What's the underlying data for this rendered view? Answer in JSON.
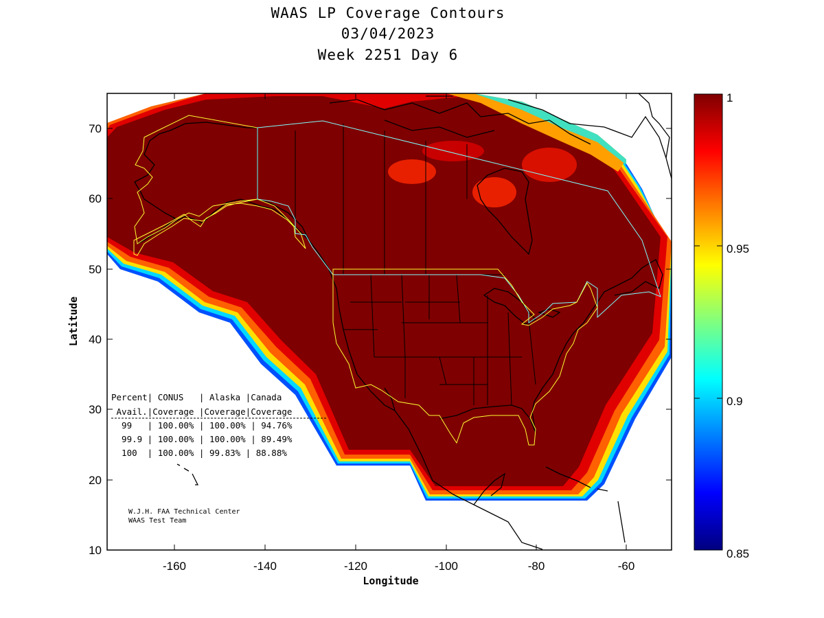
{
  "title": {
    "line1": "WAAS LP Coverage Contours",
    "line2": "03/04/2023",
    "line3": "Week 2251 Day 6"
  },
  "axes": {
    "xlabel": "Longitude",
    "ylabel": "Latitude",
    "x_ticks": [
      "-160",
      "-140",
      "-120",
      "-100",
      "-80",
      "-60"
    ],
    "y_ticks": [
      "70",
      "60",
      "50",
      "40",
      "30",
      "20",
      "10"
    ],
    "x_range": [
      -175,
      -50
    ],
    "y_range": [
      10,
      75
    ]
  },
  "colorbar": {
    "labels": [
      "1",
      "0.95",
      "0.9",
      "0.85"
    ],
    "range": [
      0.85,
      1.0
    ],
    "colormap": "jet"
  },
  "table": {
    "header1": "Percent| CONUS   | Alaska |Canada",
    "header2": " Avail.|Coverage |Coverage|Coverage",
    "rows": [
      "  99   | 100.00% | 100.00% | 94.76%",
      "  99.9 | 100.00% | 100.00% | 89.49%",
      "  100  | 100.00% | 99.83% | 88.88%"
    ]
  },
  "credits": {
    "line1": "W.J.H. FAA Technical Center",
    "line2": "WAAS Test Team"
  },
  "colors": {
    "coverage_full": "#7f0000",
    "alaska_boundary": "#ffff00",
    "canada_boundary": "#7fffff",
    "coastline": "#000000"
  }
}
